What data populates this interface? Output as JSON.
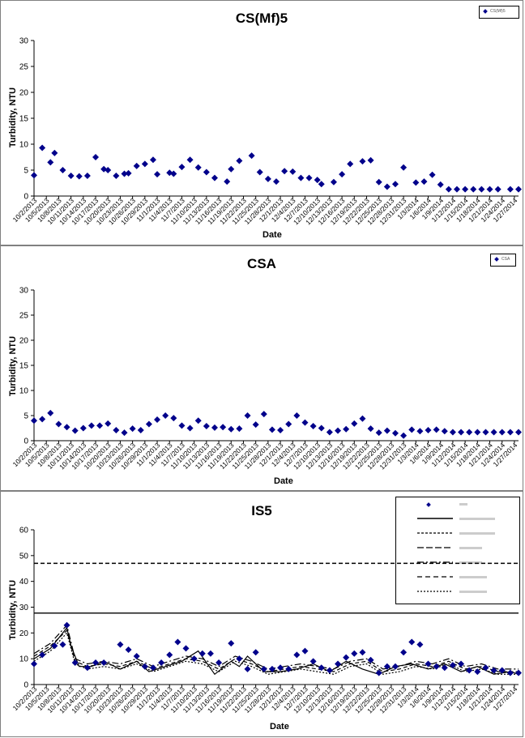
{
  "chart_data": [
    {
      "type": "scatter",
      "title": "CS(Mf)5",
      "xlabel": "Date",
      "ylabel": "Turbidity, NTU",
      "ylim": [
        0,
        30
      ],
      "yticks": [
        0,
        5,
        10,
        15,
        20,
        25,
        30
      ],
      "grid": false,
      "legend_position": "top-right",
      "colors": {
        "marker": "#00008B"
      },
      "x_tick_labels": [
        "10/2/2013",
        "10/5/2013",
        "10/8/2013",
        "10/11/2013",
        "10/14/2013",
        "10/17/2013",
        "10/20/2013",
        "10/23/2013",
        "10/26/2013",
        "10/29/2013",
        "11/1/2013",
        "11/4/2013",
        "11/7/2013",
        "11/10/2013",
        "11/13/2013",
        "11/16/2013",
        "11/19/2013",
        "11/22/2013",
        "11/25/2013",
        "11/28/2013",
        "12/1/2013",
        "12/4/2013",
        "12/7/2013",
        "12/10/2013",
        "12/13/2013",
        "12/16/2013",
        "12/19/2013",
        "12/22/2013",
        "12/25/2013",
        "12/28/2013",
        "12/31/2013",
        "1/3/2014",
        "1/6/2014",
        "1/9/2014",
        "1/12/2014",
        "1/15/2014",
        "1/18/2014",
        "1/21/2014",
        "1/24/2014",
        "1/27/2014"
      ],
      "series": [
        {
          "name": "CS(Mf)5",
          "style": "diamond",
          "x": [
            "2013-10-02",
            "2013-10-04",
            "2013-10-06",
            "2013-10-07",
            "2013-10-09",
            "2013-10-11",
            "2013-10-13",
            "2013-10-15",
            "2013-10-17",
            "2013-10-19",
            "2013-10-20",
            "2013-10-22",
            "2013-10-24",
            "2013-10-25",
            "2013-10-27",
            "2013-10-29",
            "2013-10-31",
            "2013-11-01",
            "2013-11-04",
            "2013-11-05",
            "2013-11-07",
            "2013-11-09",
            "2013-11-11",
            "2013-11-13",
            "2013-11-15",
            "2013-11-18",
            "2013-11-19",
            "2013-11-21",
            "2013-11-24",
            "2013-11-26",
            "2013-11-28",
            "2013-11-30",
            "2013-12-02",
            "2013-12-04",
            "2013-12-06",
            "2013-12-08",
            "2013-12-10",
            "2013-12-11",
            "2013-12-14",
            "2013-12-16",
            "2013-12-18",
            "2013-12-21",
            "2013-12-23",
            "2013-12-25",
            "2013-12-27",
            "2013-12-29",
            "2013-12-31",
            "2014-01-03",
            "2014-01-05",
            "2014-01-07",
            "2014-01-09",
            "2014-01-11",
            "2014-01-13",
            "2014-01-15",
            "2014-01-17",
            "2014-01-19",
            "2014-01-21",
            "2014-01-23",
            "2014-01-26",
            "2014-01-28"
          ],
          "y": [
            4.0,
            9.3,
            6.5,
            8.3,
            5.0,
            3.9,
            3.8,
            3.9,
            7.5,
            5.2,
            5.0,
            3.9,
            4.3,
            4.4,
            5.8,
            6.2,
            7.0,
            4.2,
            4.5,
            4.3,
            5.6,
            7.0,
            5.5,
            4.6,
            3.5,
            2.8,
            5.2,
            6.8,
            7.8,
            4.6,
            3.3,
            2.8,
            4.8,
            4.7,
            3.5,
            3.5,
            3.1,
            2.3,
            2.7,
            4.2,
            6.2,
            6.7,
            6.9,
            2.7,
            1.8,
            2.3,
            5.5,
            2.6,
            2.8,
            4.1,
            2.2,
            1.3,
            1.3,
            1.3,
            1.3,
            1.3,
            1.3,
            1.3,
            1.3,
            1.3
          ]
        }
      ]
    },
    {
      "type": "scatter",
      "title": "CSA",
      "xlabel": "Date",
      "ylabel": "Turbidity, NTU",
      "ylim": [
        0,
        30
      ],
      "yticks": [
        0,
        5,
        10,
        15,
        20,
        25,
        30
      ],
      "grid": false,
      "legend_position": "top-right",
      "colors": {
        "marker": "#00008B"
      },
      "x_tick_labels": [
        "10/2/2013",
        "10/5/2013",
        "10/8/2013",
        "10/11/2013",
        "10/14/2013",
        "10/17/2013",
        "10/20/2013",
        "10/23/2013",
        "10/26/2013",
        "10/29/2013",
        "11/1/2013",
        "11/4/2013",
        "11/7/2013",
        "11/10/2013",
        "11/13/2013",
        "11/16/2013",
        "11/19/2013",
        "11/22/2013",
        "11/25/2013",
        "11/28/2013",
        "12/1/2013",
        "12/4/2013",
        "12/7/2013",
        "12/10/2013",
        "12/13/2013",
        "12/16/2013",
        "12/19/2013",
        "12/22/2013",
        "12/25/2013",
        "12/28/2013",
        "12/31/2013",
        "1/3/2014",
        "1/6/2014",
        "1/9/2014",
        "1/12/2014",
        "1/15/2014",
        "1/18/2014",
        "1/21/2014",
        "1/24/2014",
        "1/27/2014"
      ],
      "series": [
        {
          "name": "CSA",
          "style": "diamond",
          "x": [
            "2013-10-02",
            "2013-10-04",
            "2013-10-06",
            "2013-10-08",
            "2013-10-10",
            "2013-10-12",
            "2013-10-14",
            "2013-10-16",
            "2013-10-18",
            "2013-10-20",
            "2013-10-22",
            "2013-10-24",
            "2013-10-26",
            "2013-10-28",
            "2013-10-30",
            "2013-11-01",
            "2013-11-03",
            "2013-11-05",
            "2013-11-07",
            "2013-11-09",
            "2013-11-11",
            "2013-11-13",
            "2013-11-15",
            "2013-11-17",
            "2013-11-19",
            "2013-11-21",
            "2013-11-23",
            "2013-11-25",
            "2013-11-27",
            "2013-11-29",
            "2013-12-01",
            "2013-12-03",
            "2013-12-05",
            "2013-12-07",
            "2013-12-09",
            "2013-12-11",
            "2013-12-13",
            "2013-12-15",
            "2013-12-17",
            "2013-12-19",
            "2013-12-21",
            "2013-12-23",
            "2013-12-25",
            "2013-12-27",
            "2013-12-29",
            "2013-12-31",
            "2014-01-02",
            "2014-01-04",
            "2014-01-06",
            "2014-01-08",
            "2014-01-10",
            "2014-01-12",
            "2014-01-14",
            "2014-01-16",
            "2014-01-18",
            "2014-01-20",
            "2014-01-22",
            "2014-01-24",
            "2014-01-26",
            "2014-01-28"
          ],
          "y": [
            4.0,
            4.3,
            5.5,
            3.3,
            2.7,
            2.0,
            2.5,
            3.0,
            3.0,
            3.4,
            2.1,
            1.6,
            2.4,
            2.1,
            3.3,
            4.2,
            5.0,
            4.5,
            3.0,
            2.5,
            4.0,
            2.9,
            2.6,
            2.7,
            2.3,
            2.4,
            5.0,
            3.2,
            5.3,
            2.2,
            2.1,
            3.3,
            5.0,
            3.6,
            2.9,
            2.5,
            1.7,
            2.0,
            2.3,
            3.4,
            4.4,
            2.4,
            1.6,
            2.0,
            1.5,
            1.0,
            2.2,
            1.9,
            2.1,
            2.2,
            1.9,
            1.7,
            1.7,
            1.7,
            1.7,
            1.7,
            1.7,
            1.7,
            1.7,
            1.7
          ]
        }
      ]
    },
    {
      "type": "line",
      "title": "IS5",
      "xlabel": "Date",
      "ylabel": "Turbidity, NTU",
      "ylim": [
        0,
        60
      ],
      "yticks": [
        0,
        10,
        20,
        30,
        40,
        50,
        60
      ],
      "grid": false,
      "legend_position": "top-right",
      "colors": {
        "marker": "#00008B",
        "lines": "#000000"
      },
      "x_tick_labels": [
        "10/2/2013",
        "10/5/2013",
        "10/8/2013",
        "10/11/2013",
        "10/14/2013",
        "10/17/2013",
        "10/20/2013",
        "10/23/2013",
        "10/26/2013",
        "10/29/2013",
        "11/1/2013",
        "11/4/2013",
        "11/7/2013",
        "11/10/2013",
        "11/13/2013",
        "11/16/2013",
        "11/19/2013",
        "11/22/2013",
        "11/25/2013",
        "11/28/2013",
        "12/1/2013",
        "12/4/2013",
        "12/7/2013",
        "12/10/2013",
        "12/13/2013",
        "12/16/2013",
        "12/19/2013",
        "12/22/2013",
        "12/25/2013",
        "12/28/2013",
        "12/31/2013",
        "1/3/2014",
        "1/6/2014",
        "1/9/2014",
        "1/12/2014",
        "1/15/2014",
        "1/18/2014",
        "1/21/2014",
        "1/24/2014",
        "1/27/2014"
      ],
      "horizontal_lines": [
        {
          "value": 27.7,
          "style": "solid"
        },
        {
          "value": 47.0,
          "style": "dashed"
        }
      ],
      "series": [
        {
          "style": "diamond",
          "x": [
            "2013-10-02",
            "2013-10-04",
            "2013-10-07",
            "2013-10-09",
            "2013-10-10",
            "2013-10-12",
            "2013-10-15",
            "2013-10-17",
            "2013-10-19",
            "2013-10-23",
            "2013-10-25",
            "2013-10-27",
            "2013-10-29",
            "2013-10-31",
            "2013-11-02",
            "2013-11-04",
            "2013-11-06",
            "2013-11-08",
            "2013-11-10",
            "2013-11-12",
            "2013-11-14",
            "2013-11-16",
            "2013-11-19",
            "2013-11-21",
            "2013-11-23",
            "2013-11-25",
            "2013-11-27",
            "2013-11-29",
            "2013-12-01",
            "2013-12-03",
            "2013-12-05",
            "2013-12-07",
            "2013-12-09",
            "2013-12-11",
            "2013-12-13",
            "2013-12-15",
            "2013-12-17",
            "2013-12-19",
            "2013-12-21",
            "2013-12-23",
            "2013-12-25",
            "2013-12-27",
            "2013-12-29",
            "2013-12-31",
            "2014-01-02",
            "2014-01-04",
            "2014-01-06",
            "2014-01-08",
            "2014-01-10",
            "2014-01-12",
            "2014-01-14",
            "2014-01-16",
            "2014-01-18",
            "2014-01-20",
            "2014-01-22",
            "2014-01-24",
            "2014-01-26",
            "2014-01-28"
          ],
          "y": [
            8.0,
            11.5,
            15.0,
            15.5,
            23.0,
            8.5,
            6.5,
            8.5,
            8.5,
            15.5,
            13.5,
            11.0,
            7.0,
            6.5,
            8.5,
            11.5,
            16.5,
            14.0,
            10.0,
            12.0,
            12.0,
            8.5,
            16.0,
            10.0,
            6.0,
            12.5,
            6.0,
            6.0,
            6.5,
            6.0,
            11.5,
            13.0,
            9.0,
            6.5,
            5.5,
            8.0,
            10.5,
            12.0,
            12.5,
            9.5,
            4.5,
            7.0,
            7.0,
            12.5,
            16.5,
            15.5,
            8.0,
            7.0,
            6.5,
            7.5,
            8.0,
            5.5,
            5.0,
            6.5,
            5.5,
            5.5,
            4.5,
            4.5
          ]
        },
        {
          "style": "solid",
          "x": [
            "2013-10-02",
            "2013-10-06",
            "2013-10-10",
            "2013-10-11",
            "2013-10-13",
            "2013-10-16",
            "2013-10-19",
            "2013-10-23",
            "2013-10-27",
            "2013-10-30",
            "2013-11-03",
            "2013-11-07",
            "2013-11-11",
            "2013-11-15",
            "2013-11-19",
            "2013-11-21",
            "2013-11-23",
            "2013-11-27",
            "2013-12-01",
            "2013-12-05",
            "2013-12-09",
            "2013-12-13",
            "2013-12-17",
            "2013-12-21",
            "2013-12-25",
            "2013-12-29",
            "2014-01-02",
            "2014-01-06",
            "2014-01-10",
            "2014-01-14",
            "2014-01-18",
            "2014-01-22",
            "2014-01-26",
            "2014-01-28"
          ],
          "y": [
            10,
            14,
            22,
            15,
            7,
            7,
            9,
            6,
            9,
            5,
            7,
            9,
            13,
            4,
            9,
            7,
            11,
            5,
            5,
            6,
            8,
            5,
            9,
            6,
            4,
            7,
            8,
            6,
            8,
            5,
            7,
            4,
            5,
            4
          ]
        },
        {
          "style": "dashed",
          "x": [
            "2013-10-02",
            "2013-10-06",
            "2013-10-10",
            "2013-10-12",
            "2013-10-15",
            "2013-10-19",
            "2013-10-23",
            "2013-10-27",
            "2013-10-31",
            "2013-11-04",
            "2013-11-08",
            "2013-11-12",
            "2013-11-16",
            "2013-11-20",
            "2013-11-24",
            "2013-11-28",
            "2013-12-02",
            "2013-12-06",
            "2013-12-10",
            "2013-12-14",
            "2013-12-18",
            "2013-12-22",
            "2013-12-26",
            "2013-12-30",
            "2014-01-03",
            "2014-01-07",
            "2014-01-11",
            "2014-01-15",
            "2014-01-19",
            "2014-01-23",
            "2014-01-28"
          ],
          "y": [
            11,
            15,
            21,
            9,
            7,
            8,
            7,
            9,
            6,
            8,
            10,
            9,
            6,
            10,
            8,
            5,
            6,
            7,
            6,
            5,
            8,
            9,
            5,
            6,
            8,
            7,
            9,
            6,
            7,
            5,
            5
          ]
        },
        {
          "style": "dash-dot",
          "x": [
            "2013-10-02",
            "2013-10-06",
            "2013-10-10",
            "2013-10-12",
            "2013-10-15",
            "2013-10-19",
            "2013-10-23",
            "2013-10-27",
            "2013-10-31",
            "2013-11-04",
            "2013-11-08",
            "2013-11-12",
            "2013-11-16",
            "2013-11-20",
            "2013-11-24",
            "2013-11-28",
            "2013-12-02",
            "2013-12-06",
            "2013-12-10",
            "2013-12-14",
            "2013-12-18",
            "2013-12-22",
            "2013-12-26",
            "2013-12-30",
            "2014-01-03",
            "2014-01-07",
            "2014-01-11",
            "2014-01-15",
            "2014-01-19",
            "2014-01-23",
            "2014-01-28"
          ],
          "y": [
            12,
            16,
            23,
            10,
            8,
            9,
            8,
            10,
            7,
            9,
            11,
            10,
            7,
            11,
            9,
            6,
            7,
            8,
            7,
            6,
            9,
            10,
            6,
            7,
            9,
            8,
            10,
            7,
            8,
            6,
            6
          ]
        },
        {
          "style": "dotted",
          "x": [
            "2013-10-02",
            "2013-10-06",
            "2013-10-10",
            "2013-10-12",
            "2013-10-15",
            "2013-10-19",
            "2013-10-23",
            "2013-10-27",
            "2013-10-31",
            "2013-11-04",
            "2013-11-08",
            "2013-11-12",
            "2013-11-16",
            "2013-11-20",
            "2013-11-24",
            "2013-11-28",
            "2013-12-02",
            "2013-12-06",
            "2013-12-10",
            "2013-12-14",
            "2013-12-18",
            "2013-12-22",
            "2013-12-26",
            "2013-12-30",
            "2014-01-03",
            "2014-01-07",
            "2014-01-11",
            "2014-01-15",
            "2014-01-19",
            "2014-01-23",
            "2014-01-28"
          ],
          "y": [
            9,
            13,
            20,
            8,
            6,
            7,
            6,
            8,
            5,
            7,
            9,
            8,
            5,
            9,
            7,
            4,
            5,
            6,
            5,
            4,
            7,
            8,
            4,
            5,
            7,
            6,
            8,
            5,
            6,
            4,
            4
          ]
        }
      ]
    }
  ]
}
